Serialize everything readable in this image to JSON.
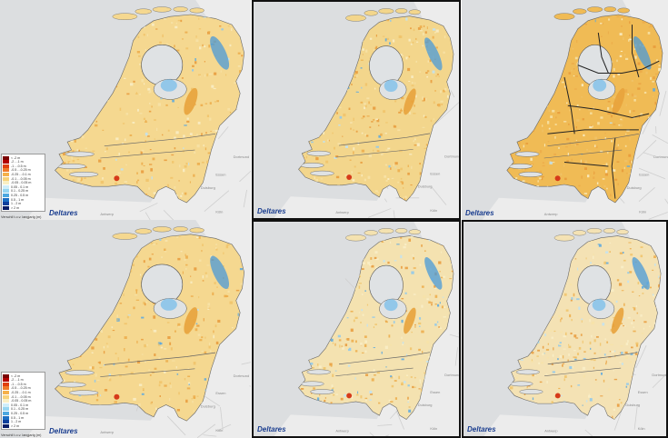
{
  "watermark": "Deltares",
  "legend_caption": "Verschil t.o.v. langjarig (m)",
  "legend": [
    {
      "label": "< -2 m",
      "color": "#7a0000"
    },
    {
      "label": "-2 - -1 m",
      "color": "#b30000"
    },
    {
      "label": "-1 - -0.5 m",
      "color": "#e04010"
    },
    {
      "label": "-0.5 - -0.25 m",
      "color": "#f07a2a"
    },
    {
      "label": "-0.25 - -0.1 m",
      "color": "#f5b04a"
    },
    {
      "label": "-0.1 - -0.05 m",
      "color": "#f8d27a"
    },
    {
      "label": "-0.05 - 0.05 m",
      "color": "#f9efc4"
    },
    {
      "label": "0.05 - 0.1 m",
      "color": "#cfeefa"
    },
    {
      "label": "0.1 - 0.25 m",
      "color": "#96d6f2"
    },
    {
      "label": "0.25 - 0.5 m",
      "color": "#4ca8e0"
    },
    {
      "label": "0.5 - 1 m",
      "color": "#1c6fc4"
    },
    {
      "label": "1 - 2 m",
      "color": "#0e3f9c"
    },
    {
      "label": "> 2 m",
      "color": "#081c66"
    }
  ],
  "city_labels": [
    "Essen",
    "Dortmund",
    "Duisburg",
    "Köln",
    "Antwerp"
  ],
  "panels": [
    {
      "id": "p1",
      "base": "#f5d890",
      "legend": true,
      "provinces": false
    },
    {
      "id": "p2",
      "base": "#f3d68c",
      "legend": false,
      "provinces": false
    },
    {
      "id": "p3",
      "base": "#f0bb55",
      "legend": false,
      "provinces": true
    },
    {
      "id": "p4",
      "base": "#f5d890",
      "legend": true,
      "provinces": false
    },
    {
      "id": "p5",
      "base": "#f4e2b0",
      "legend": false,
      "provinces": false
    },
    {
      "id": "p6",
      "base": "#f4e2b4",
      "legend": false,
      "provinces": false
    }
  ]
}
